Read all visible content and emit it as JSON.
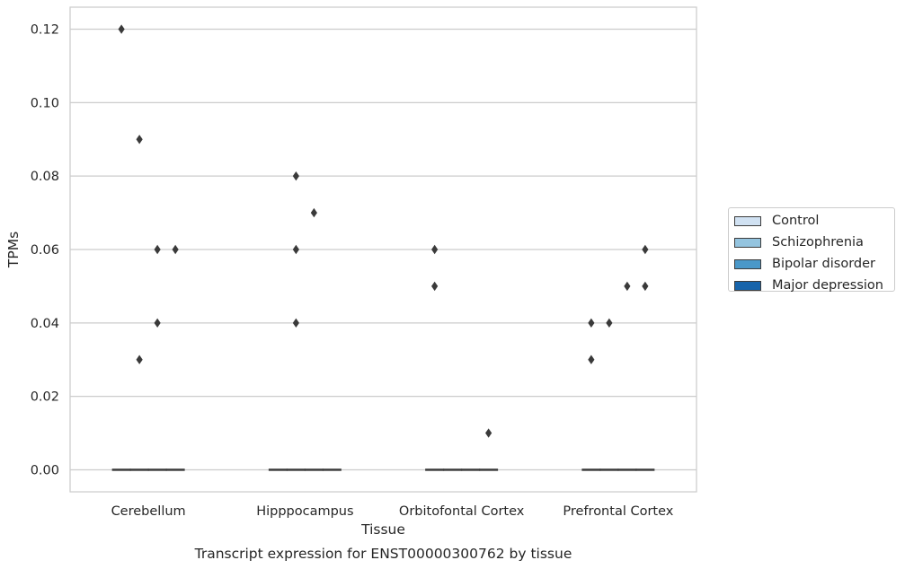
{
  "chart_data": {
    "type": "box",
    "xlabel": "Tissue",
    "ylabel": "TPMs",
    "caption": "Transcript expression for ENST00000300762 by tissue",
    "categories": [
      "Cerebellum",
      "Hipppocampus",
      "Orbitofontal Cortex",
      "Prefrontal Cortex"
    ],
    "ylim": [
      -0.006,
      0.126
    ],
    "yticks": [
      "0.00",
      "0.02",
      "0.04",
      "0.06",
      "0.08",
      "0.10",
      "0.12"
    ],
    "grid": true,
    "legend_position": "right",
    "series": [
      {
        "name": "Control",
        "color": "#d0e1f2",
        "median": [
          0,
          0,
          0,
          0
        ],
        "outliers": [
          [
            0.12
          ],
          [],
          [
            0.06,
            0.05
          ],
          [
            0.03,
            0.04
          ]
        ]
      },
      {
        "name": "Schizophrenia",
        "color": "#94c4df",
        "median": [
          0,
          0,
          0,
          0
        ],
        "outliers": [
          [
            0.09,
            0.03
          ],
          [
            0.08,
            0.06,
            0.04
          ],
          [],
          [
            0.04
          ]
        ]
      },
      {
        "name": "Bipolar disorder",
        "color": "#4a98c9",
        "median": [
          0,
          0,
          0,
          0
        ],
        "outliers": [
          [
            0.06,
            0.04
          ],
          [
            0.07
          ],
          [],
          [
            0.05
          ]
        ]
      },
      {
        "name": "Major depression",
        "color": "#1764ab",
        "median": [
          0,
          0,
          0,
          0
        ],
        "outliers": [
          [
            0.06
          ],
          [],
          [
            0.01
          ],
          [
            0.06,
            0.05
          ]
        ]
      }
    ]
  }
}
